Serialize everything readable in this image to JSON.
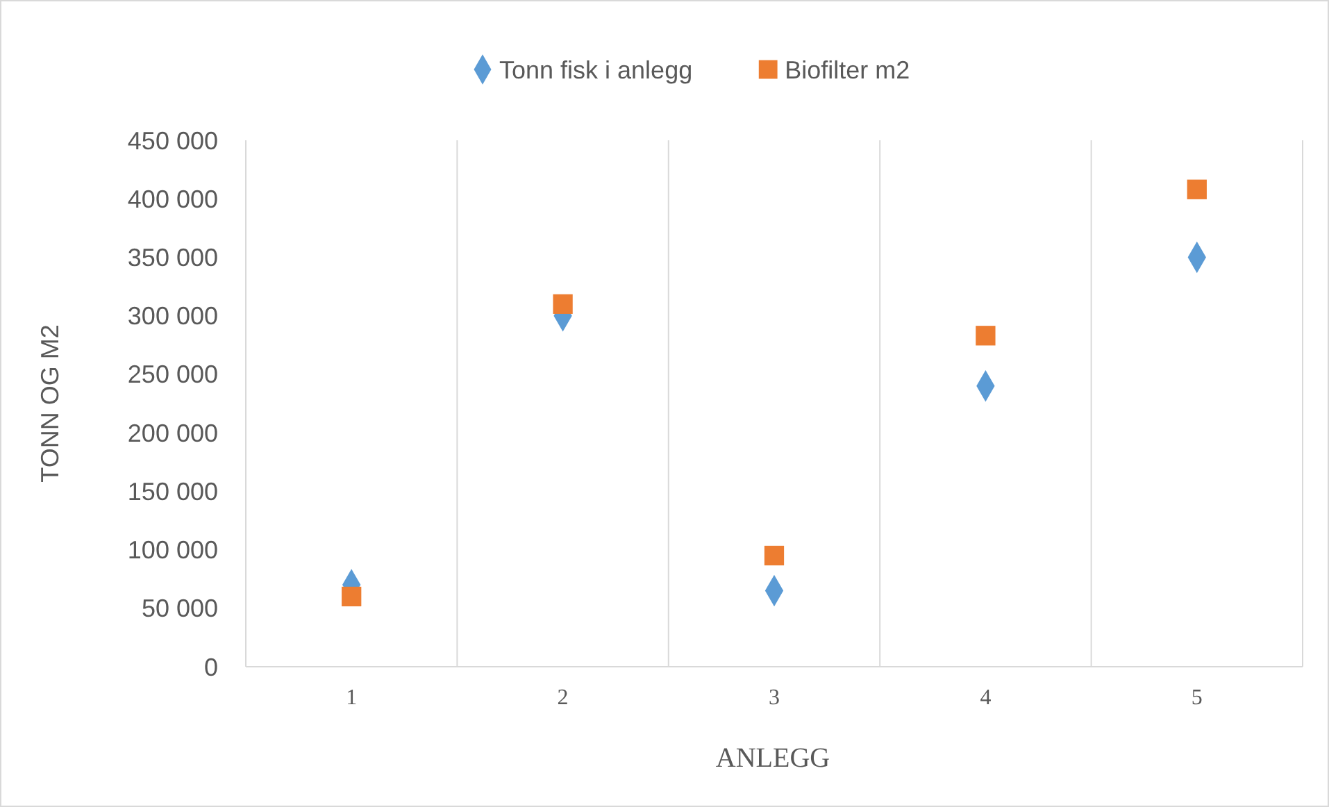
{
  "chart_data": {
    "type": "scatter",
    "xlabel": "ANLEGG",
    "ylabel": "TONN OG M2",
    "categories": [
      "1",
      "2",
      "3",
      "4",
      "5"
    ],
    "series": [
      {
        "name": "Tonn fisk i anlegg",
        "color": "#5b9bd5",
        "marker": "diamond",
        "values": [
          70000,
          300000,
          65000,
          240000,
          350000
        ]
      },
      {
        "name": "Biofilter m2",
        "color": "#ed7d31",
        "marker": "square",
        "values": [
          60000,
          310000,
          95000,
          283000,
          408000
        ]
      }
    ],
    "ylim": [
      0,
      450000
    ],
    "yticks": [
      0,
      {
        "value": 50000,
        "label": "50 000"
      },
      {
        "value": 100000,
        "label": "100 000"
      },
      {
        "value": 150000,
        "label": "150 000"
      },
      {
        "value": 200000,
        "label": "200 000"
      },
      {
        "value": 250000,
        "label": "250 000"
      },
      {
        "value": 300000,
        "label": "300 000"
      },
      {
        "value": 350000,
        "label": "350 000"
      },
      {
        "value": 400000,
        "label": "400 000"
      },
      {
        "value": 450000,
        "label": "450 000"
      }
    ],
    "grid": "x",
    "legend": "top"
  }
}
